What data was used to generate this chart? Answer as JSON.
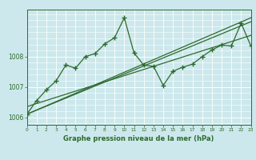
{
  "xlabel": "Graphe pression niveau de la mer (hPa)",
  "ylabel": "",
  "bg_color": "#cce8ec",
  "plot_bg_color": "#cce8ec",
  "grid_color": "#ffffff",
  "line_color": "#2d6a2d",
  "axis_color": "#2d6a2d",
  "text_color": "#2d6a2d",
  "ylim": [
    1005.75,
    1009.55
  ],
  "xlim": [
    0,
    23
  ],
  "yticks": [
    1006,
    1007,
    1008
  ],
  "xticks": [
    0,
    1,
    2,
    3,
    4,
    5,
    6,
    7,
    8,
    9,
    10,
    11,
    12,
    13,
    14,
    15,
    16,
    17,
    18,
    19,
    20,
    21,
    22,
    23
  ],
  "trend1_x": [
    0,
    23
  ],
  "trend1_y": [
    1006.1,
    1009.15
  ],
  "trend2_x": [
    0,
    23
  ],
  "trend2_y": [
    1006.1,
    1009.28
  ],
  "trend3_x": [
    0,
    23
  ],
  "trend3_y": [
    1006.35,
    1008.7
  ],
  "main_x": [
    0,
    1,
    2,
    3,
    4,
    5,
    6,
    7,
    8,
    9,
    10,
    11,
    12,
    13,
    14,
    15,
    16,
    17,
    18,
    19,
    20,
    21,
    22,
    23
  ],
  "main_y": [
    1006.1,
    1006.55,
    1006.9,
    1007.2,
    1007.72,
    1007.62,
    1008.0,
    1008.1,
    1008.42,
    1008.62,
    1009.28,
    1008.12,
    1007.72,
    1007.68,
    1007.05,
    1007.52,
    1007.65,
    1007.75,
    1008.0,
    1008.22,
    1008.38,
    1008.35,
    1009.1,
    1008.35
  ]
}
